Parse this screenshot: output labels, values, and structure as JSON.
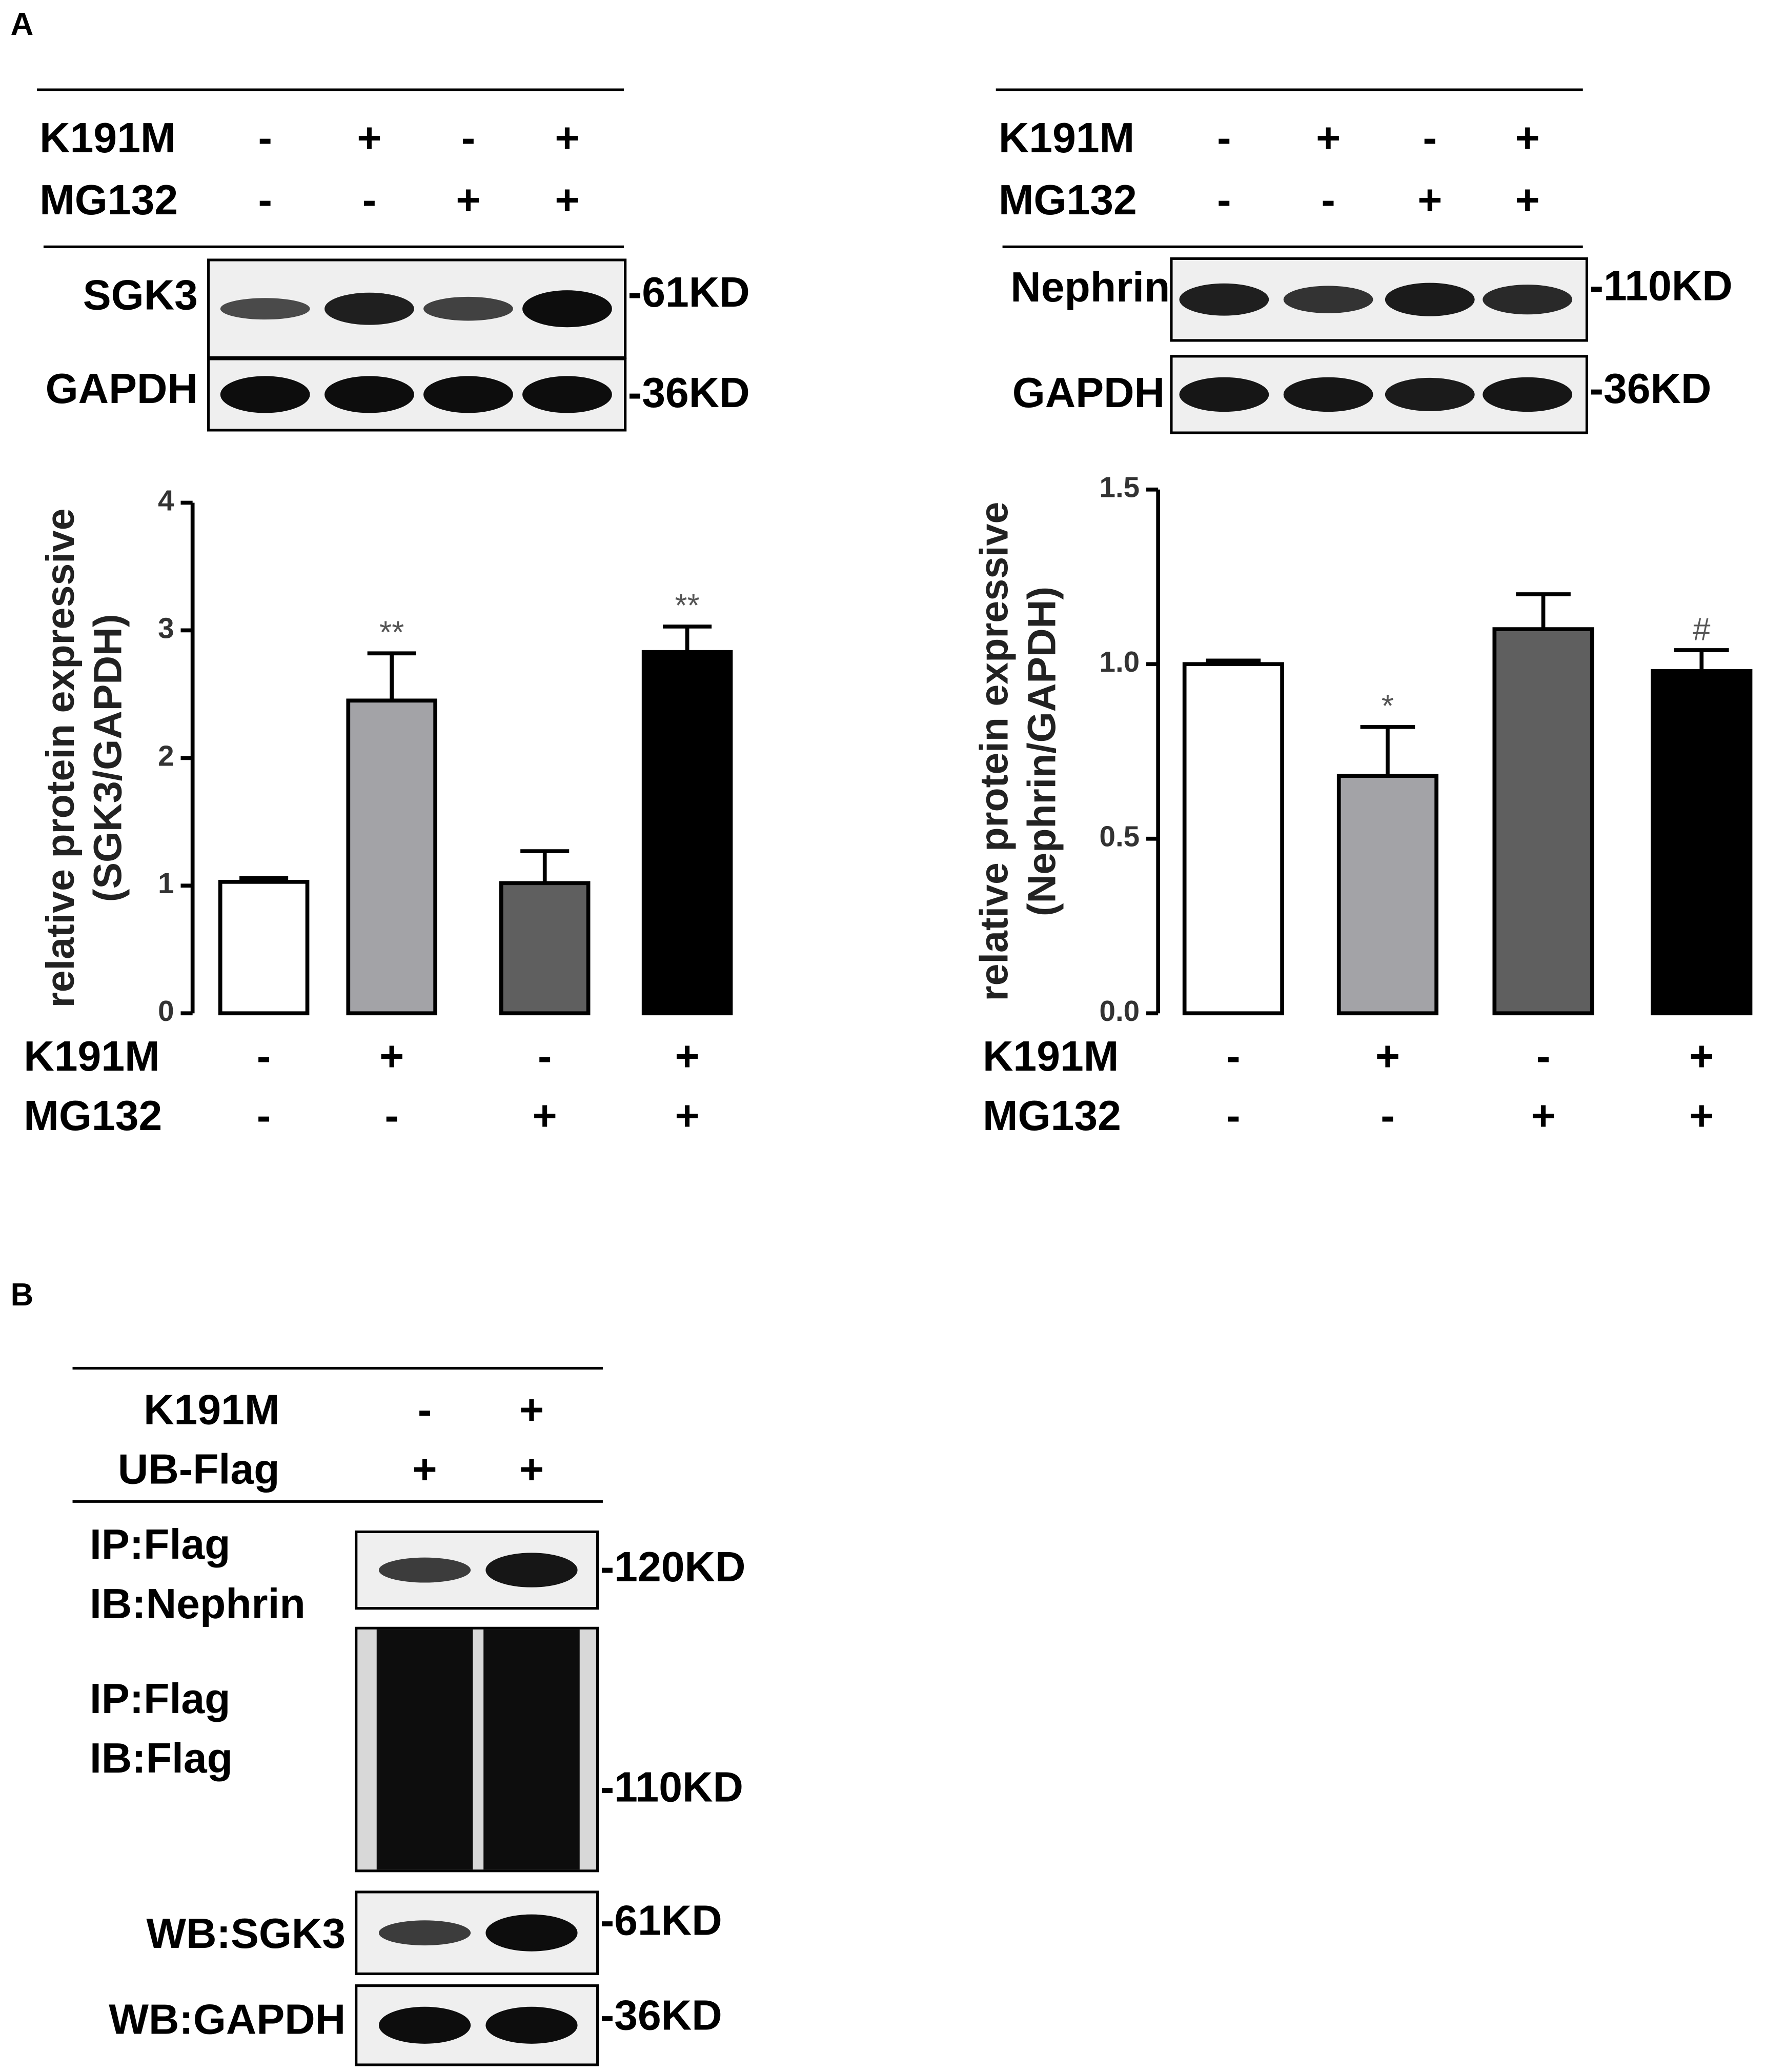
{
  "panel_a": {
    "label": "A",
    "left": {
      "conditions": [
        {
          "name": "K191M",
          "signs": [
            "-",
            "+",
            "-",
            "+"
          ]
        },
        {
          "name": "MG132",
          "signs": [
            "-",
            "-",
            "+",
            "+"
          ]
        }
      ],
      "blots": [
        {
          "label": [
            "SGK3"
          ],
          "size": "-61KD"
        },
        {
          "label": [
            "GAPDH"
          ],
          "size": "-36KD"
        }
      ]
    },
    "right": {
      "conditions": [
        {
          "name": "K191M",
          "signs": [
            "-",
            "+",
            "-",
            "+"
          ]
        },
        {
          "name": "MG132",
          "signs": [
            "-",
            "-",
            "+",
            "+"
          ]
        }
      ],
      "blots": [
        {
          "label": [
            "Nephrin"
          ],
          "size": "-110KD"
        },
        {
          "label": [
            "GAPDH"
          ],
          "size": "-36KD"
        }
      ]
    }
  },
  "panel_b": {
    "label": "B",
    "conditions": [
      {
        "name": "K191M",
        "signs": [
          "-",
          "+"
        ]
      },
      {
        "name": "UB-Flag",
        "signs": [
          "+",
          "+"
        ]
      }
    ],
    "blots": [
      {
        "label": [
          "IP:Flag",
          "IB:Nephrin"
        ],
        "size": "-120KD"
      },
      {
        "label": [
          "IP:Flag",
          "IB:Flag"
        ],
        "size": "-110KD"
      },
      {
        "label": [
          "WB:SGK3"
        ],
        "size": "-61KD"
      },
      {
        "label": [
          "WB:GAPDH"
        ],
        "size": "-36KD"
      }
    ]
  },
  "chart_data": [
    {
      "type": "bar",
      "ylabel": [
        "relative protein expressive",
        "(SGK3/GAPDH)"
      ],
      "conditions": [
        {
          "name": "K191M",
          "signs": [
            "-",
            "+",
            "-",
            "+"
          ]
        },
        {
          "name": "MG132",
          "signs": [
            "-",
            "-",
            "+",
            "+"
          ]
        }
      ],
      "values": [
        1.03,
        2.45,
        1.02,
        2.83
      ],
      "errors": [
        0.03,
        0.37,
        0.25,
        0.2
      ],
      "annotations": [
        null,
        "**",
        null,
        "**"
      ],
      "colors": [
        "#ffffff",
        "#a3a3a7",
        "#5f5f5f",
        "#000000"
      ],
      "ylim": [
        0,
        4
      ],
      "yticks": [
        0,
        1,
        2,
        3,
        4
      ]
    },
    {
      "type": "bar",
      "ylabel": [
        "relative protein expressive",
        "(Nephrin/GAPDH)"
      ],
      "conditions": [
        {
          "name": "K191M",
          "signs": [
            "-",
            "+",
            "-",
            "+"
          ]
        },
        {
          "name": "MG132",
          "signs": [
            "-",
            "-",
            "+",
            "+"
          ]
        }
      ],
      "values": [
        1.0,
        0.68,
        1.1,
        0.98
      ],
      "errors": [
        0.01,
        0.14,
        0.1,
        0.06
      ],
      "annotations": [
        null,
        "*",
        null,
        "#"
      ],
      "colors": [
        "#ffffff",
        "#a3a3a7",
        "#5f5f5f",
        "#000000"
      ],
      "ylim": [
        0,
        1.5
      ],
      "yticks": [
        {
          "value": 0,
          "label": "0.0"
        },
        {
          "value": 0.5,
          "label": "0.5"
        },
        {
          "value": 1,
          "label": "1.0"
        },
        1.5
      ]
    }
  ]
}
